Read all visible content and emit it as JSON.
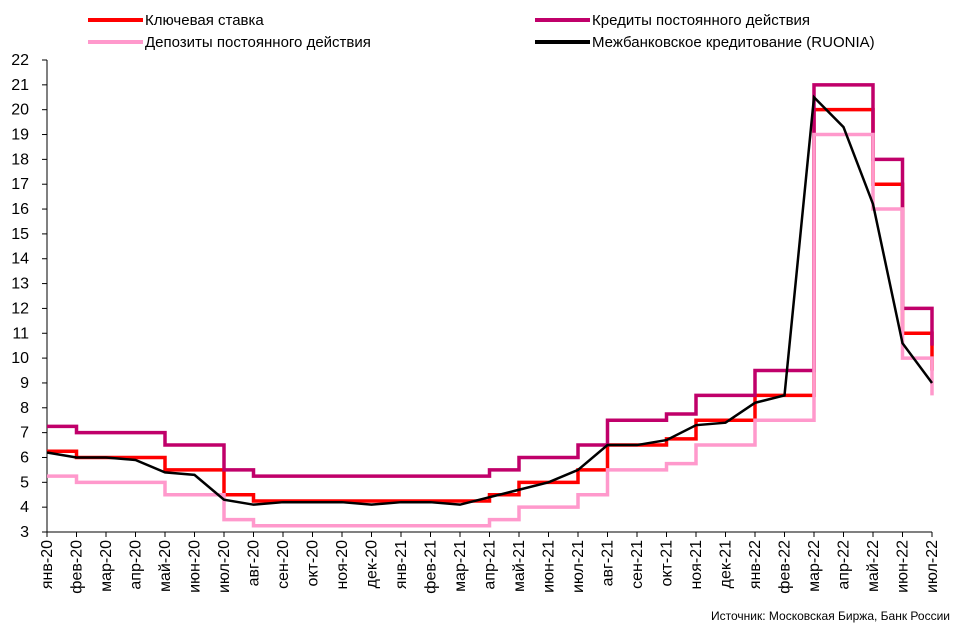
{
  "chart_data": {
    "type": "line",
    "categories": [
      "янв-20",
      "фев-20",
      "мар-20",
      "апр-20",
      "май-20",
      "июн-20",
      "июл-20",
      "авг-20",
      "сен-20",
      "окт-20",
      "ноя-20",
      "дек-20",
      "янв-21",
      "фев-21",
      "мар-21",
      "апр-21",
      "май-21",
      "июн-21",
      "июл-21",
      "авг-21",
      "сен-21",
      "окт-21",
      "ноя-21",
      "дек-21",
      "янв-22",
      "фев-22",
      "мар-22",
      "апр-22",
      "май-22",
      "июн-22",
      "июл-22"
    ],
    "series": [
      {
        "name": "Ключевая ставка",
        "color": "#ff0000",
        "drawstyle": "steps",
        "values": [
          6.25,
          6,
          6,
          6,
          5.5,
          5.5,
          4.5,
          4.25,
          4.25,
          4.25,
          4.25,
          4.25,
          4.25,
          4.25,
          4.25,
          4.5,
          5,
          5,
          5.5,
          6.5,
          6.5,
          6.75,
          7.5,
          7.5,
          8.5,
          8.5,
          20,
          20,
          17,
          11,
          9.5
        ]
      },
      {
        "name": "Кредиты постоянного действия",
        "color": "#c0006a",
        "drawstyle": "steps",
        "values": [
          7.25,
          7,
          7,
          7,
          6.5,
          6.5,
          5.5,
          5.25,
          5.25,
          5.25,
          5.25,
          5.25,
          5.25,
          5.25,
          5.25,
          5.5,
          6,
          6,
          6.5,
          7.5,
          7.5,
          7.75,
          8.5,
          8.5,
          9.5,
          9.5,
          21,
          21,
          18,
          12,
          10.5
        ]
      },
      {
        "name": "Депозиты постоянного действия",
        "color": "#ff99cc",
        "drawstyle": "steps",
        "values": [
          5.25,
          5,
          5,
          5,
          4.5,
          4.5,
          3.5,
          3.25,
          3.25,
          3.25,
          3.25,
          3.25,
          3.25,
          3.25,
          3.25,
          3.5,
          4,
          4,
          4.5,
          5.5,
          5.5,
          5.75,
          6.5,
          6.5,
          7.5,
          7.5,
          19,
          19,
          16,
          10,
          8.5
        ]
      },
      {
        "name": "Межбанковское кредитование (RUONIA)",
        "color": "#000000",
        "drawstyle": "line",
        "values": [
          6.2,
          6,
          6,
          5.9,
          5.4,
          5.3,
          4.3,
          4.1,
          4.2,
          4.2,
          4.2,
          4.1,
          4.2,
          4.2,
          4.1,
          4.4,
          4.7,
          5,
          5.5,
          6.5,
          6.5,
          6.7,
          7.3,
          7.4,
          8.2,
          8.5,
          20.5,
          19.3,
          16.2,
          10.6,
          9
        ]
      }
    ],
    "ylim": [
      3,
      22
    ],
    "yticks": [
      3,
      4,
      5,
      6,
      7,
      8,
      9,
      10,
      11,
      12,
      13,
      14,
      15,
      16,
      17,
      18,
      19,
      20,
      21,
      22
    ],
    "source": "Источник: Московская Биржа, Банк России"
  }
}
